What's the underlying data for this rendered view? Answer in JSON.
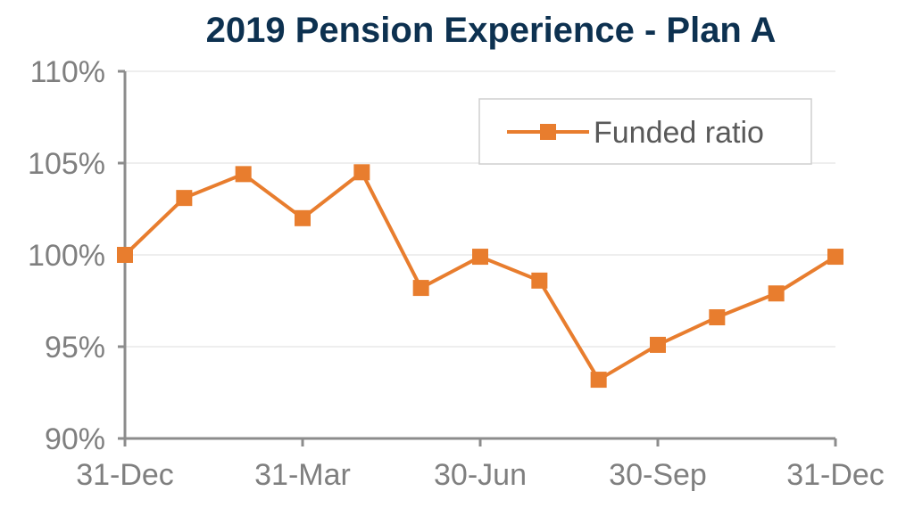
{
  "chart_data": {
    "type": "line",
    "title": "2019 Pension Experience - Plan A",
    "xlabel": "",
    "ylabel": "",
    "x_tick_labels": [
      "31-Dec",
      "31-Mar",
      "30-Jun",
      "30-Sep",
      "31-Dec"
    ],
    "y_tick_labels": [
      "90%",
      "95%",
      "100%",
      "105%",
      "110%"
    ],
    "ylim": [
      90,
      110
    ],
    "grid": "horizontal",
    "legend_position": "top-right",
    "series": [
      {
        "name": "Funded ratio",
        "color": "#e87d2e",
        "marker": "square",
        "values": [
          100.0,
          103.1,
          104.4,
          102.0,
          104.5,
          98.2,
          99.9,
          98.6,
          93.2,
          95.1,
          96.6,
          97.9,
          99.9
        ]
      }
    ]
  }
}
